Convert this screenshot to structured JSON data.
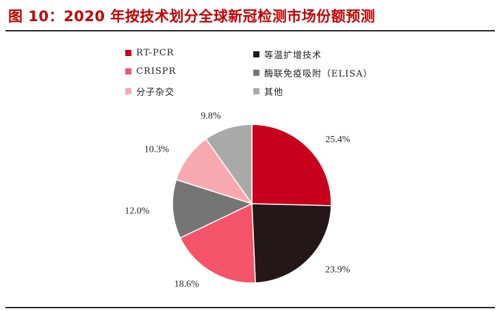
{
  "title": "图 10：2020 年按技术划分全球新冠检测市场份额预测",
  "chart_data": {
    "type": "pie",
    "title": "",
    "legend_placement": "top",
    "start_angle_deg": 0,
    "direction": "clockwise",
    "slices": [
      {
        "name": "RT-PCR",
        "value": 25.4,
        "label": "25.4%",
        "color": "#c8001e"
      },
      {
        "name": "等温扩增技术",
        "value": 23.9,
        "label": "23.9%",
        "color": "#241718"
      },
      {
        "name": "CRISPR",
        "value": 18.6,
        "label": "18.6%",
        "color": "#f4546a"
      },
      {
        "name": "酶联免疫吸附（ELISA）",
        "value": 12.0,
        "label": "12.0%",
        "color": "#757575"
      },
      {
        "name": "分子杂交",
        "value": 10.3,
        "label": "10.3%",
        "color": "#f8a9b0"
      },
      {
        "name": "其他",
        "value": 9.8,
        "label": "9.8%",
        "color": "#a9a9a9"
      }
    ]
  }
}
